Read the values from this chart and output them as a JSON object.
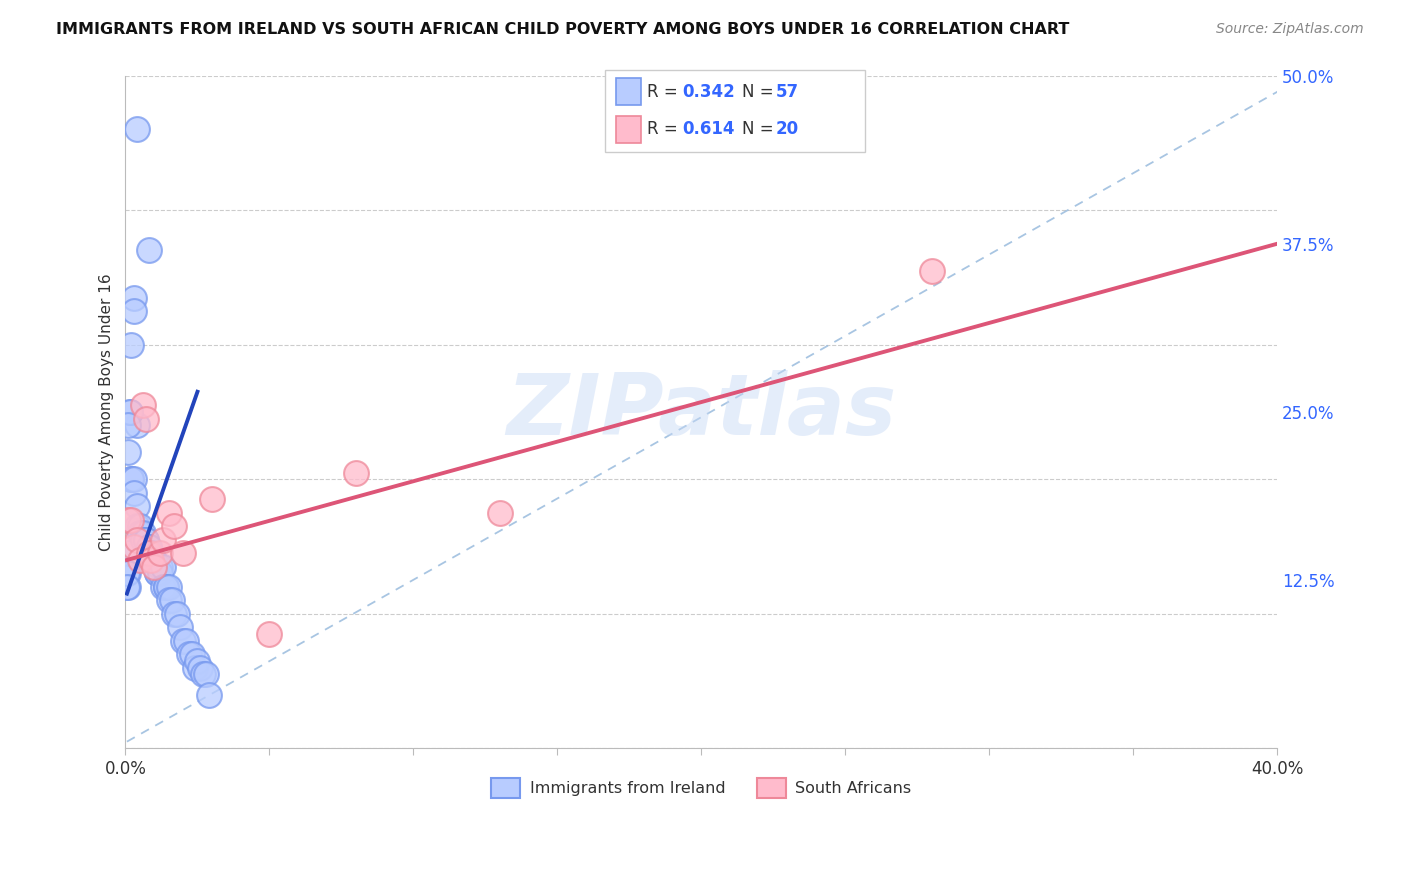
{
  "title": "IMMIGRANTS FROM IRELAND VS SOUTH AFRICAN CHILD POVERTY AMONG BOYS UNDER 16 CORRELATION CHART",
  "source": "Source: ZipAtlas.com",
  "ylabel": "Child Poverty Among Boys Under 16",
  "x_range": [
    0,
    0.4
  ],
  "y_range": [
    0,
    0.5
  ],
  "legend_r1": "0.342",
  "legend_n1": "57",
  "legend_r2": "0.614",
  "legend_n2": "20",
  "legend_label1": "Immigrants from Ireland",
  "legend_label2": "South Africans",
  "watermark": "ZIPatlas",
  "blue_dot_face": "#b8ccff",
  "blue_dot_edge": "#7799ee",
  "pink_dot_face": "#ffbbcc",
  "pink_dot_edge": "#ee8899",
  "blue_line_color": "#2244bb",
  "pink_line_color": "#dd5577",
  "dash_line_color": "#99bbdd",
  "blue_dots_x": [
    0.004,
    0.008,
    0.003,
    0.003,
    0.004,
    0.002,
    0.0015,
    0.0015,
    0.001,
    0.001,
    0.001,
    0.001,
    0.001,
    0.0005,
    0.0005,
    0.002,
    0.002,
    0.003,
    0.003,
    0.004,
    0.004,
    0.005,
    0.005,
    0.006,
    0.006,
    0.007,
    0.007,
    0.008,
    0.008,
    0.009,
    0.009,
    0.01,
    0.01,
    0.011,
    0.011,
    0.012,
    0.012,
    0.013,
    0.013,
    0.014,
    0.014,
    0.015,
    0.015,
    0.016,
    0.017,
    0.018,
    0.019,
    0.02,
    0.021,
    0.022,
    0.023,
    0.024,
    0.025,
    0.026,
    0.027,
    0.028,
    0.029
  ],
  "blue_dots_y": [
    0.46,
    0.37,
    0.335,
    0.325,
    0.24,
    0.3,
    0.25,
    0.25,
    0.24,
    0.22,
    0.145,
    0.13,
    0.12,
    0.13,
    0.12,
    0.2,
    0.2,
    0.2,
    0.19,
    0.18,
    0.165,
    0.165,
    0.16,
    0.16,
    0.155,
    0.155,
    0.155,
    0.15,
    0.15,
    0.145,
    0.14,
    0.14,
    0.14,
    0.13,
    0.13,
    0.135,
    0.13,
    0.135,
    0.12,
    0.12,
    0.12,
    0.12,
    0.11,
    0.11,
    0.1,
    0.1,
    0.09,
    0.08,
    0.08,
    0.07,
    0.07,
    0.06,
    0.065,
    0.06,
    0.055,
    0.055,
    0.04
  ],
  "pink_dots_x": [
    0.001,
    0.002,
    0.003,
    0.004,
    0.005,
    0.006,
    0.007,
    0.008,
    0.009,
    0.01,
    0.012,
    0.013,
    0.015,
    0.017,
    0.02,
    0.03,
    0.05,
    0.08,
    0.13,
    0.28
  ],
  "pink_dots_y": [
    0.17,
    0.17,
    0.15,
    0.155,
    0.14,
    0.255,
    0.245,
    0.145,
    0.14,
    0.135,
    0.145,
    0.155,
    0.175,
    0.165,
    0.145,
    0.185,
    0.085,
    0.205,
    0.175,
    0.355
  ],
  "blue_line": [
    [
      0.0005,
      0.025
    ],
    [
      0.115,
      0.265
    ]
  ],
  "pink_line": [
    [
      0.0005,
      0.4
    ],
    [
      0.14,
      0.375
    ]
  ],
  "diag_line": [
    [
      0.0005,
      0.41
    ],
    [
      0.005,
      0.5
    ]
  ]
}
